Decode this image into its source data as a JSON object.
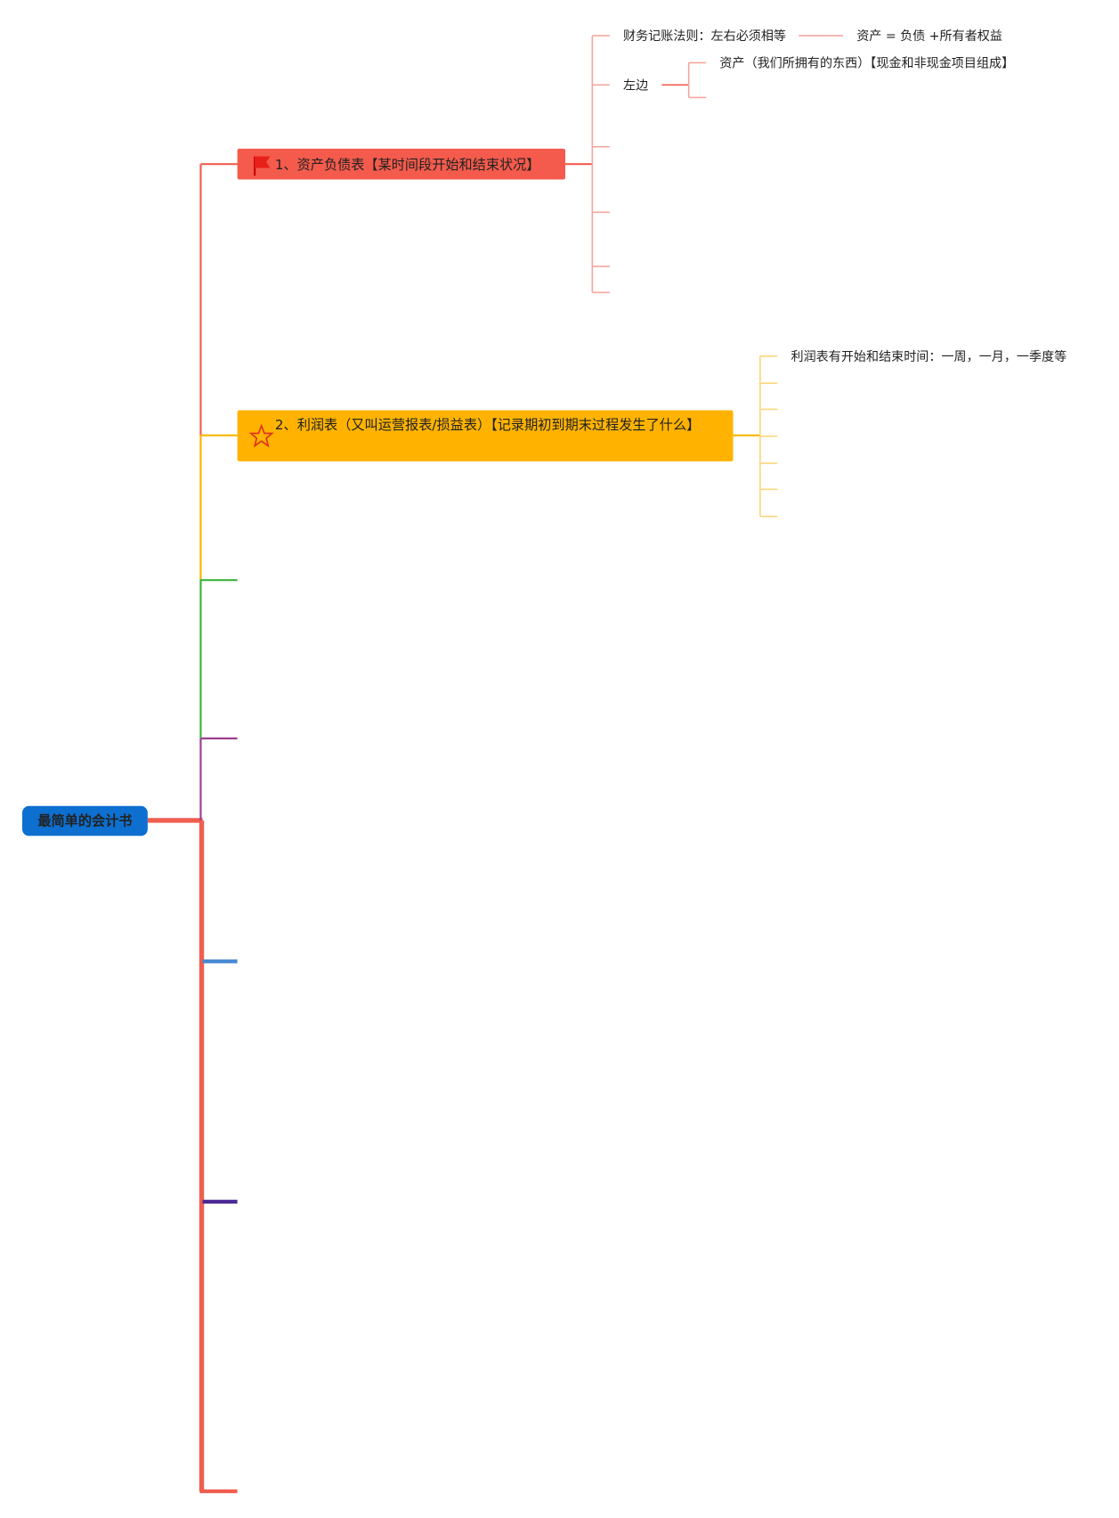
{
  "root": {
    "label": "最简单的会计书"
  },
  "nodes": [
    {
      "label": "1、资产负债表【某时间段开始和结束状况】",
      "children": [
        {
          "label": "财务记账法则：左右必须相等",
          "children": [
            {
              "label": "资产 = 负债 +所有者权益"
            }
          ]
        },
        {
          "label": "左边",
          "children": [
            {
              "label": "资产（我们所拥有的东西）【现金和非现金项目组成】"
            }
          ]
        }
      ]
    },
    {
      "label": "2、利润表（又叫运营报表/损益表）【记录期初到期末过程发生了什么】",
      "children": [
        {
          "label": "利润表有开始和结束时间：一周，一月，一季度等"
        }
      ]
    }
  ]
}
